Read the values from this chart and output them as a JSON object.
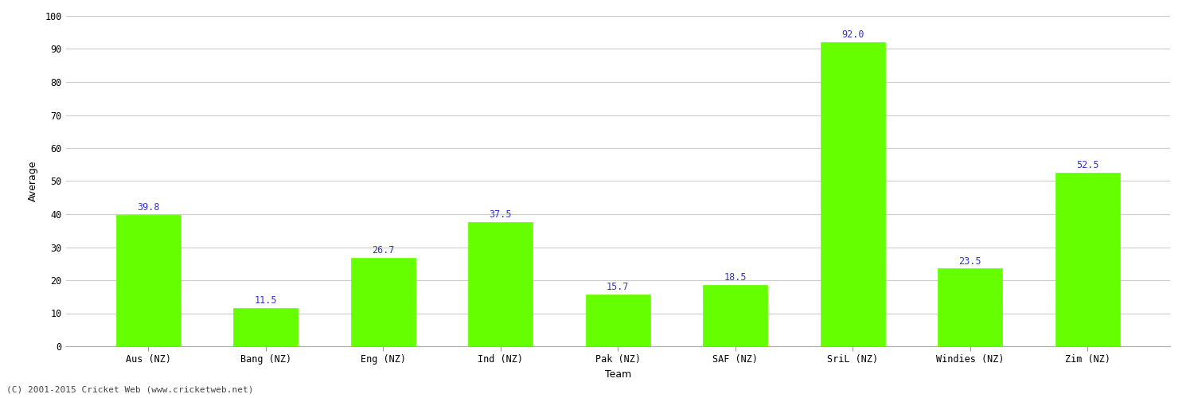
{
  "show_title": false,
  "categories": [
    "Aus (NZ)",
    "Bang (NZ)",
    "Eng (NZ)",
    "Ind (NZ)",
    "Pak (NZ)",
    "SAF (NZ)",
    "SriL (NZ)",
    "Windies (NZ)",
    "Zim (NZ)"
  ],
  "values": [
    39.8,
    11.5,
    26.7,
    37.5,
    15.7,
    18.5,
    92.0,
    23.5,
    52.5
  ],
  "bar_color": "#66ff00",
  "bar_edge_color": "#66ff00",
  "label_color": "#3333cc",
  "xlabel": "Team",
  "ylabel": "Average",
  "ylim": [
    0,
    100
  ],
  "yticks": [
    0,
    10,
    20,
    30,
    40,
    50,
    60,
    70,
    80,
    90,
    100
  ],
  "grid_color": "#cccccc",
  "background_color": "#ffffff",
  "plot_bg_color": "#ffffff",
  "footer": "(C) 2001-2015 Cricket Web (www.cricketweb.net)",
  "label_fontsize": 8.5,
  "tick_fontsize": 8.5,
  "footer_fontsize": 8,
  "xlabel_fontsize": 9,
  "ylabel_fontsize": 9,
  "bar_width": 0.55
}
